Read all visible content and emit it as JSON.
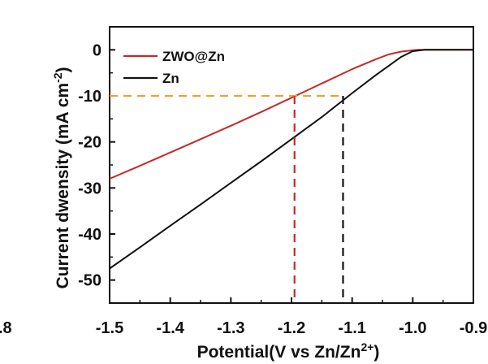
{
  "chart_data": {
    "type": "line",
    "xlabel": "Potential(V vs Zn/Zn",
    "xlabel_sup": "2+",
    "xlabel_end": ")",
    "ylabel": "Current dwensity (mA cm",
    "ylabel_sup": "-2",
    "ylabel_end": ")",
    "xlim": [
      -1.5,
      -0.9
    ],
    "ylim": [
      -55,
      5
    ],
    "x_tick_labels": [
      "-1.5",
      "-1.4",
      "-1.3",
      "-1.2",
      "-1.1",
      "-1.0",
      "-0.9"
    ],
    "x_tick_values": [
      -1.5,
      -1.4,
      -1.3,
      -1.2,
      -1.1,
      -1.0,
      -0.9
    ],
    "x_edge_fragment": ".8",
    "y_tick_labels": [
      "0",
      "-10",
      "-20",
      "-30",
      "-40",
      "-50"
    ],
    "y_tick_values": [
      0,
      -10,
      -20,
      -30,
      -40,
      -50
    ],
    "legend_position": "top-left",
    "grid": false,
    "series": [
      {
        "name": "ZWO@Zn",
        "color": "#c62828",
        "x": [
          -1.5,
          -1.45,
          -1.4,
          -1.35,
          -1.3,
          -1.25,
          -1.2,
          -1.15,
          -1.1,
          -1.06,
          -1.04,
          -1.02,
          -1.0,
          -0.99,
          -0.95,
          -0.9
        ],
        "y": [
          -28,
          -25.2,
          -22.3,
          -19.4,
          -16.5,
          -13.5,
          -10.4,
          -7.3,
          -4.2,
          -2.0,
          -1.0,
          -0.4,
          -0.1,
          0,
          0,
          0
        ]
      },
      {
        "name": "Zn",
        "color": "#111111",
        "x": [
          -1.5,
          -1.45,
          -1.4,
          -1.35,
          -1.3,
          -1.25,
          -1.2,
          -1.15,
          -1.1,
          -1.06,
          -1.04,
          -1.02,
          -1.0,
          -0.98,
          -0.95,
          -0.9
        ],
        "y": [
          -47.5,
          -42.9,
          -38.2,
          -33.6,
          -28.9,
          -24.2,
          -19.4,
          -14.6,
          -9.4,
          -5.4,
          -3.5,
          -1.6,
          -0.3,
          0,
          0,
          0
        ]
      }
    ],
    "reference_lines": [
      {
        "orientation": "horizontal",
        "value": -10,
        "color": "#f0a030",
        "x_from": -1.5,
        "x_to": -1.115
      },
      {
        "orientation": "vertical",
        "value": -1.195,
        "color": "#c62828",
        "y_from": -10,
        "y_to": -55
      },
      {
        "orientation": "vertical",
        "value": -1.115,
        "color": "#111111",
        "y_from": -10,
        "y_to": -55
      }
    ]
  }
}
